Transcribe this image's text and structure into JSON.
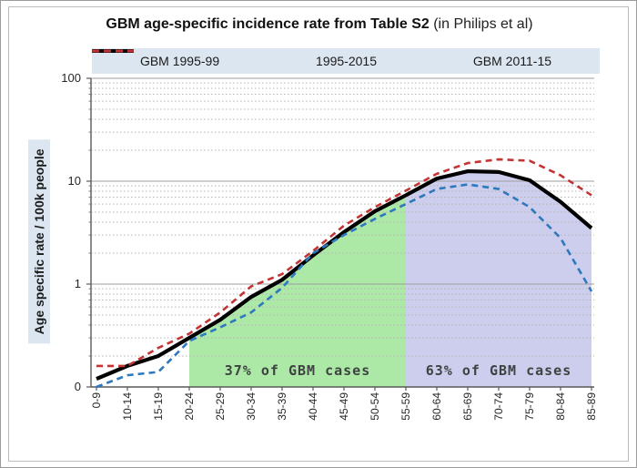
{
  "title": {
    "bold": "GBM age-specific incidence rate from Table S2",
    "normal": " (in Philips et al)"
  },
  "legend": {
    "items": [
      {
        "label": "GBM 1995-99",
        "color": "#2E78BE",
        "style": "dashed"
      },
      {
        "label": "1995-2015",
        "color": "#000000",
        "style": "solid"
      },
      {
        "label": "GBM 2011-15",
        "color": "#C33434",
        "style": "dashed"
      }
    ]
  },
  "y_axis_title": "Age specific rate / 100k  people",
  "chart_data": {
    "type": "line",
    "title": "GBM age-specific incidence rate from Table S2 (in Philips et al)",
    "xlabel": "",
    "ylabel": "Age specific rate / 100k people",
    "x_categories": [
      "0-9",
      "10-14",
      "15-19",
      "20-24",
      "25-29",
      "30-34",
      "35-39",
      "40-44",
      "45-49",
      "50-54",
      "55-59",
      "60-64",
      "65-69",
      "70-74",
      "75-79",
      "80-84",
      "85-89"
    ],
    "series": [
      {
        "name": "GBM 1995-99",
        "color": "#2E78BE",
        "dashed": true,
        "values": [
          0.1,
          0.13,
          0.14,
          0.28,
          0.38,
          0.53,
          0.92,
          2.0,
          3.0,
          4.3,
          6.0,
          8.4,
          9.3,
          8.4,
          5.6,
          2.8,
          0.85
        ]
      },
      {
        "name": "1995-2015",
        "color": "#000000",
        "dashed": false,
        "values": [
          0.12,
          0.16,
          0.2,
          0.3,
          0.45,
          0.75,
          1.1,
          1.9,
          3.2,
          5.1,
          7.3,
          10.6,
          12.5,
          12.3,
          10.2,
          6.3,
          3.5
        ]
      },
      {
        "name": "GBM 2011-15",
        "color": "#C33434",
        "dashed": true,
        "values": [
          0.16,
          0.16,
          0.24,
          0.33,
          0.53,
          0.95,
          1.25,
          2.1,
          3.7,
          5.6,
          8.1,
          11.8,
          15.0,
          16.3,
          15.8,
          11.4,
          7.3
        ]
      }
    ],
    "y_axis": {
      "scale": "log",
      "min": 0.1,
      "max": 100,
      "tick_values": [
        100,
        10,
        1,
        0.1
      ],
      "tick_labels": [
        "100",
        "10",
        "1",
        "0"
      ],
      "grid": "major-solid minor-dotted"
    },
    "legend_position": "top",
    "shaded_regions": [
      {
        "label": "37% of GBM cases",
        "from_category": "20-24",
        "to_category": "55-59",
        "from_index": 3,
        "to_index": 10,
        "fill": "#ACE8A6",
        "under_series": "1995-2015"
      },
      {
        "label": "63% of GBM cases",
        "from_category": "55-59",
        "to_category": "85-89",
        "from_index": 10,
        "to_index": 16,
        "fill": "#CDCDED",
        "under_series": "1995-2015"
      }
    ]
  }
}
